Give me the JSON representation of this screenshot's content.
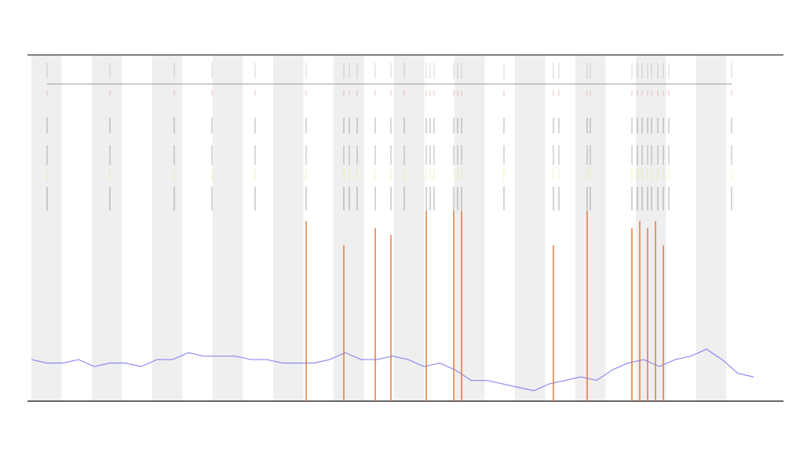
{
  "chart_data": [
    {
      "type": "line",
      "x": [
        40,
        60,
        80,
        100,
        120,
        140,
        160,
        180,
        200,
        220,
        240,
        260,
        280,
        300,
        320,
        340,
        360,
        380,
        400,
        420,
        440,
        460,
        480,
        500,
        520,
        540,
        560,
        580,
        600,
        620,
        640,
        660,
        680,
        700,
        720,
        740,
        760,
        780,
        800,
        820,
        840,
        860,
        880,
        900,
        920,
        940,
        960
      ],
      "series": [
        {
          "color": "#6f6ff0",
          "values": [
            12,
            11,
            11,
            12,
            10,
            11,
            11,
            10,
            12,
            12,
            14,
            13,
            13,
            13,
            12,
            12,
            11,
            11,
            11,
            12,
            14,
            12,
            12,
            13,
            12,
            10,
            11,
            9,
            6,
            6,
            5,
            4,
            3,
            5,
            6,
            7,
            6,
            9,
            11,
            12,
            10,
            12,
            13,
            15,
            12,
            8,
            7
          ]
        }
      ],
      "xlim": [
        35,
        998
      ],
      "ylim": [
        0,
        100
      ]
    },
    {
      "type": "bar",
      "x": [
        390,
        438,
        478,
        498,
        543,
        578,
        588,
        705,
        748,
        805,
        815,
        825,
        835,
        845
      ],
      "values": [
        52,
        45,
        50,
        48,
        55,
        55,
        55,
        45,
        55,
        50,
        52,
        50,
        52,
        45
      ],
      "color": "#e07030",
      "xlim": [
        35,
        998
      ],
      "ylim": [
        0,
        100
      ]
    }
  ]
}
